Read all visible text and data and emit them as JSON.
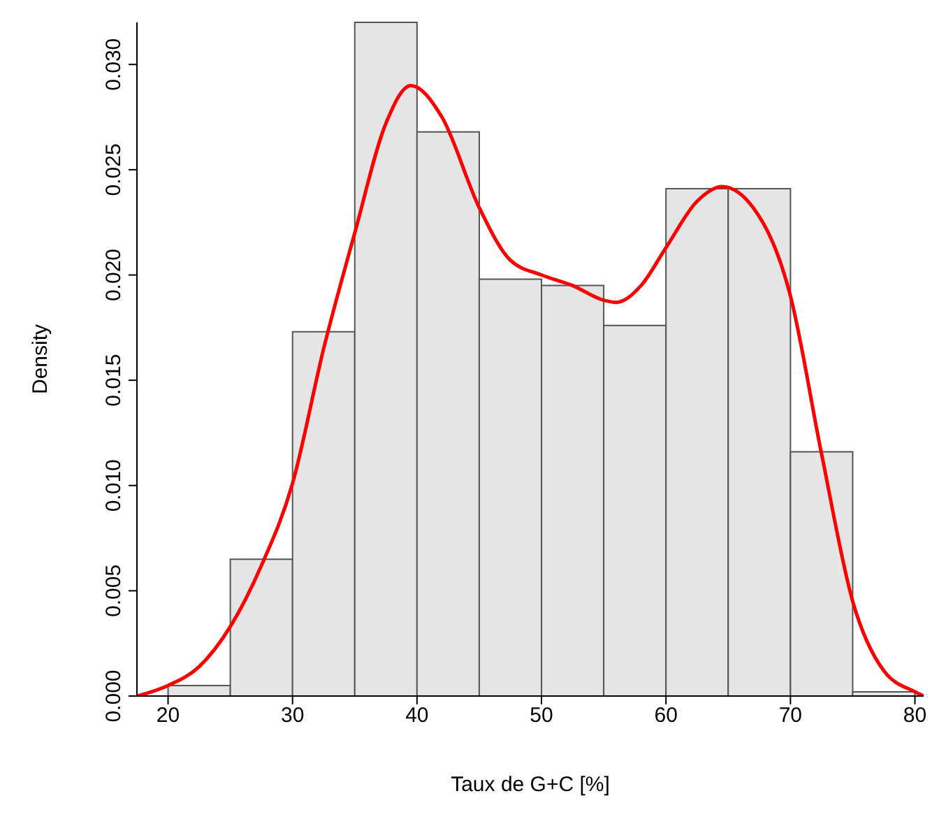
{
  "chart_data": {
    "type": "histogram",
    "xlabel": "Taux de G+C [%]",
    "ylabel": "Density",
    "bins": [
      20,
      25,
      30,
      35,
      40,
      45,
      50,
      55,
      60,
      65,
      70,
      75,
      80
    ],
    "values": [
      0.0005,
      0.0065,
      0.0173,
      0.032,
      0.0268,
      0.0198,
      0.0195,
      0.0176,
      0.0241,
      0.0241,
      0.0116,
      0.0002
    ],
    "color": "#e5e5e5",
    "series": [
      {
        "type": "line",
        "color": "#ff0000",
        "x": [
          17.5,
          20,
          22.5,
          25,
          27.5,
          30,
          32.5,
          35,
          37.5,
          39.5,
          42,
          45,
          47.5,
          50,
          52.5,
          55,
          56,
          58,
          60,
          62.5,
          64.5,
          67,
          70,
          72.5,
          75,
          77.5,
          80,
          80.7
        ],
        "values": [
          0.0,
          0.0005,
          0.0014,
          0.0033,
          0.0062,
          0.0101,
          0.0165,
          0.022,
          0.0272,
          0.029,
          0.0275,
          0.0232,
          0.0207,
          0.02,
          0.0195,
          0.0188,
          0.0187,
          0.0195,
          0.0213,
          0.0235,
          0.0242,
          0.0232,
          0.019,
          0.0115,
          0.0045,
          0.0012,
          0.0002,
          0.0
        ]
      }
    ],
    "xlim": [
      17.5,
      80.7
    ],
    "ylim": [
      0,
      0.032
    ],
    "xticks": [
      20,
      30,
      40,
      50,
      60,
      70,
      80
    ],
    "yticks": [
      {
        "value": 0,
        "label": "0.000"
      },
      {
        "value": 0.005,
        "label": "0.005"
      },
      {
        "value": 0.01,
        "label": "0.010"
      },
      {
        "value": 0.015,
        "label": "0.015"
      },
      {
        "value": 0.02,
        "label": "0.020"
      },
      {
        "value": 0.025,
        "label": "0.025"
      },
      {
        "value": 0.03,
        "label": "0.030"
      }
    ]
  }
}
